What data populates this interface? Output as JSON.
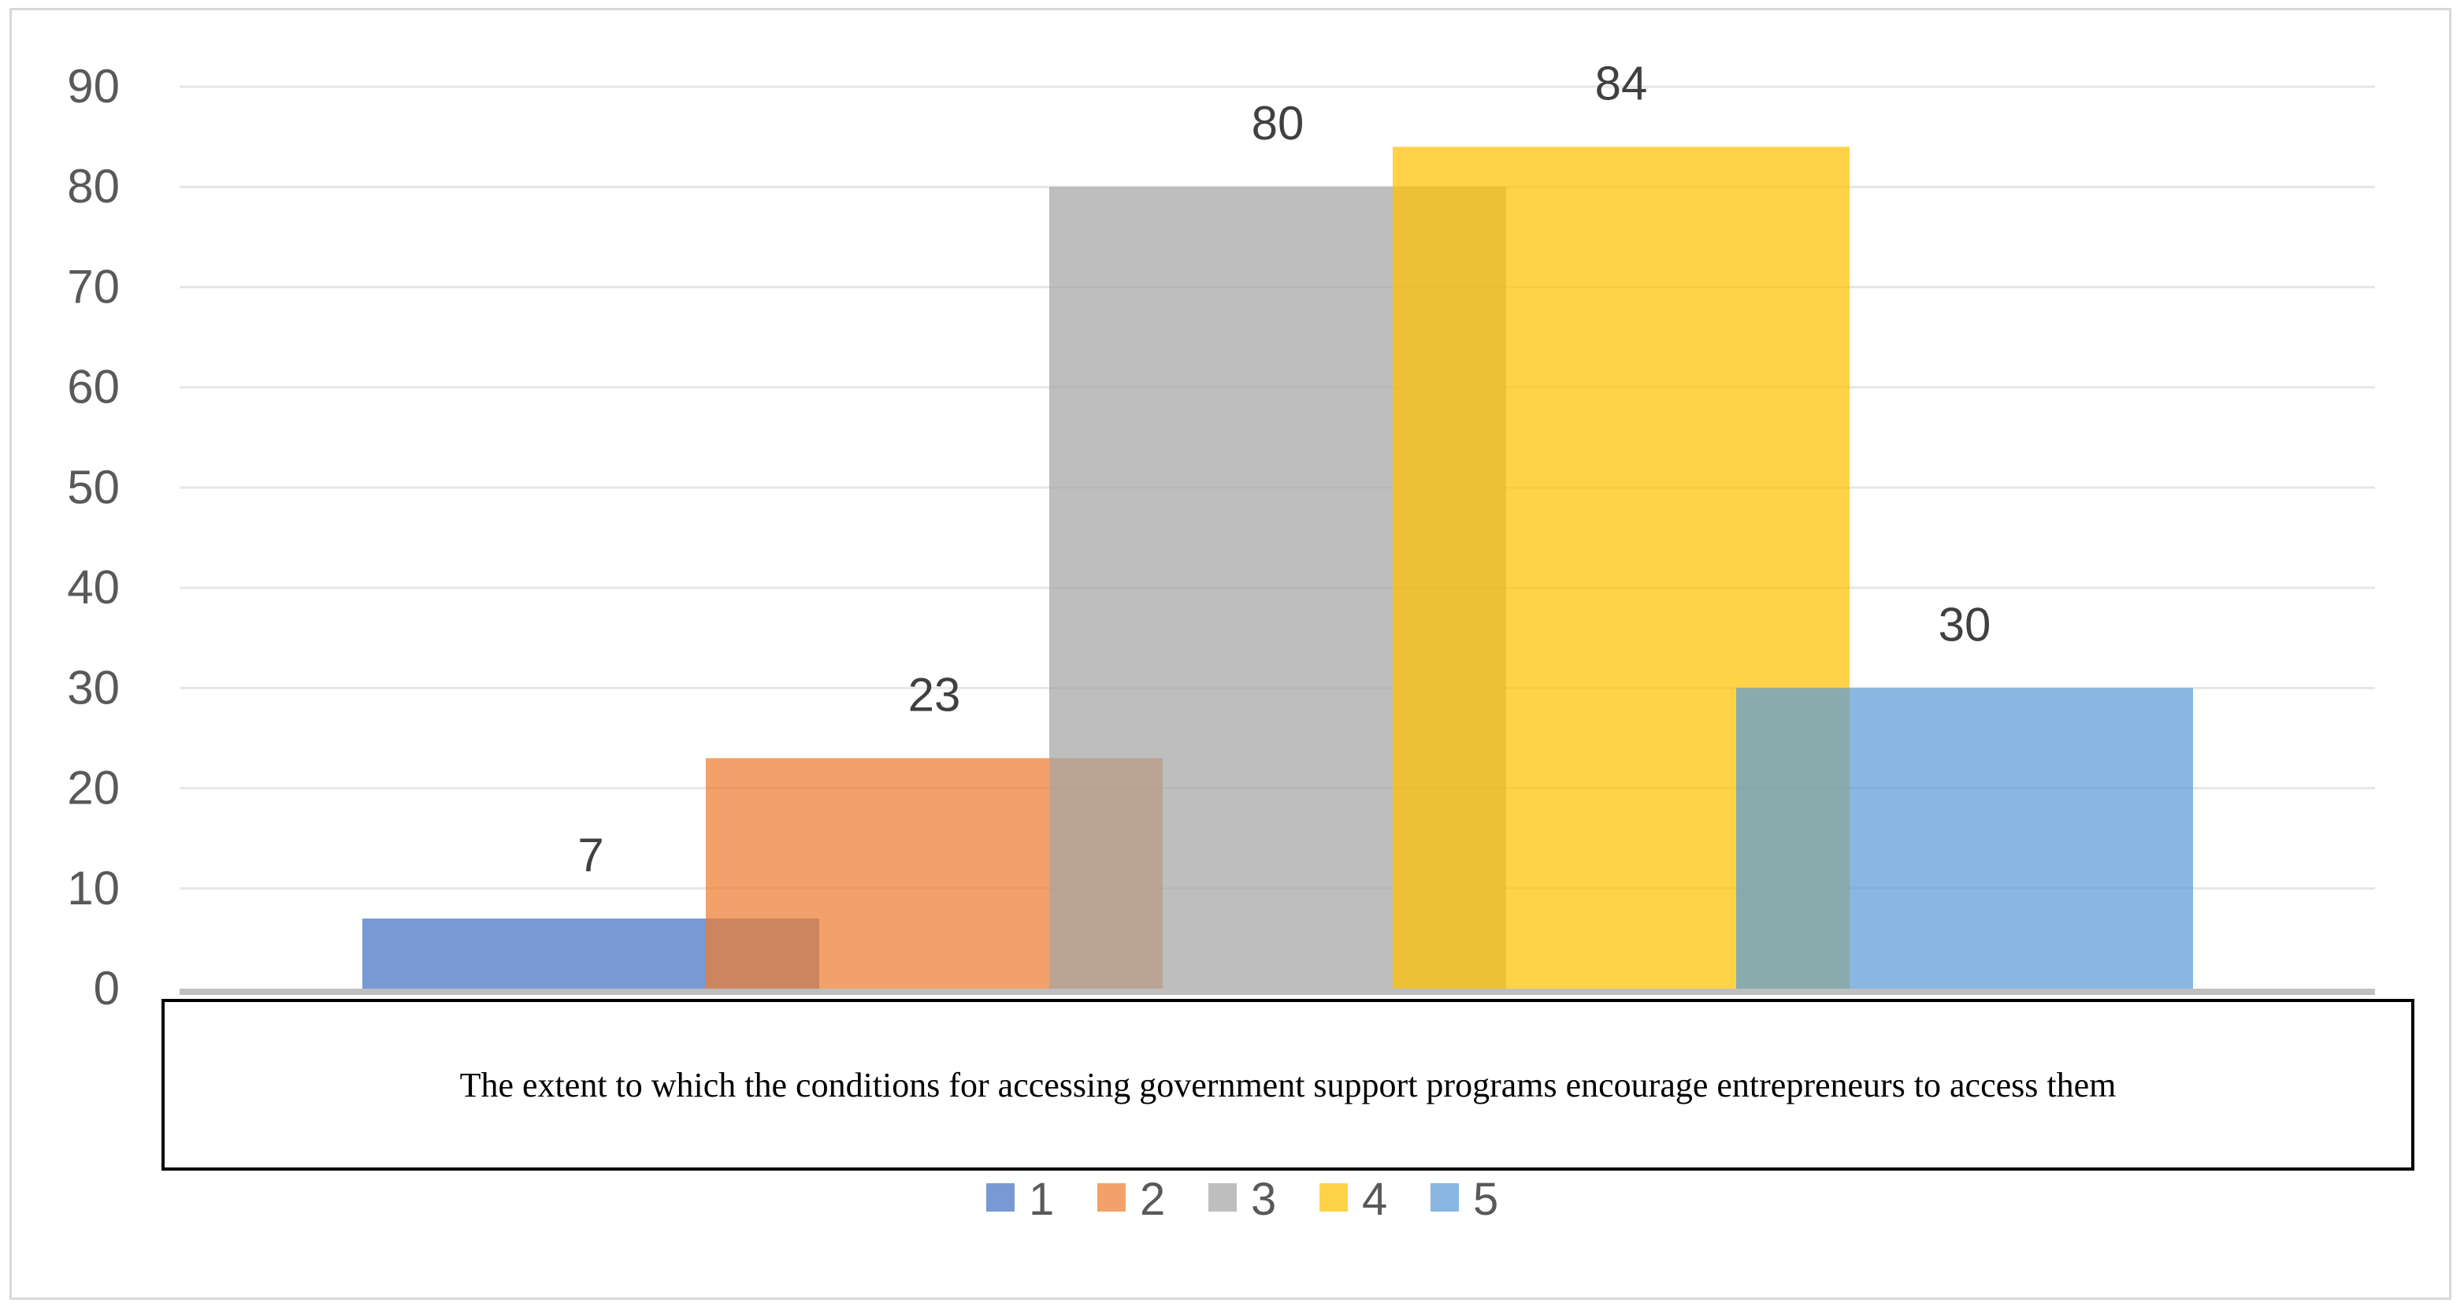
{
  "chart_data": {
    "type": "bar",
    "title": "",
    "xlabel": "The extent to which the conditions for accessing government support programs encourage entrepreneurs to access them",
    "ylabel": "",
    "ylim": [
      0,
      90
    ],
    "yticks": [
      0,
      10,
      20,
      30,
      40,
      50,
      60,
      70,
      80,
      90
    ],
    "grid": true,
    "legend_position": "bottom",
    "series": [
      {
        "name": "1",
        "value": 7,
        "label": "7",
        "color": "#4472C4"
      },
      {
        "name": "2",
        "value": 23,
        "label": "23",
        "color": "#ED7D31"
      },
      {
        "name": "3",
        "value": 80,
        "label": "80",
        "color": "#A5A5A5"
      },
      {
        "name": "4",
        "value": 84,
        "label": "84",
        "color": "#FFC000"
      },
      {
        "name": "5",
        "value": 30,
        "label": "30",
        "color": "#5B9BD5"
      }
    ]
  }
}
